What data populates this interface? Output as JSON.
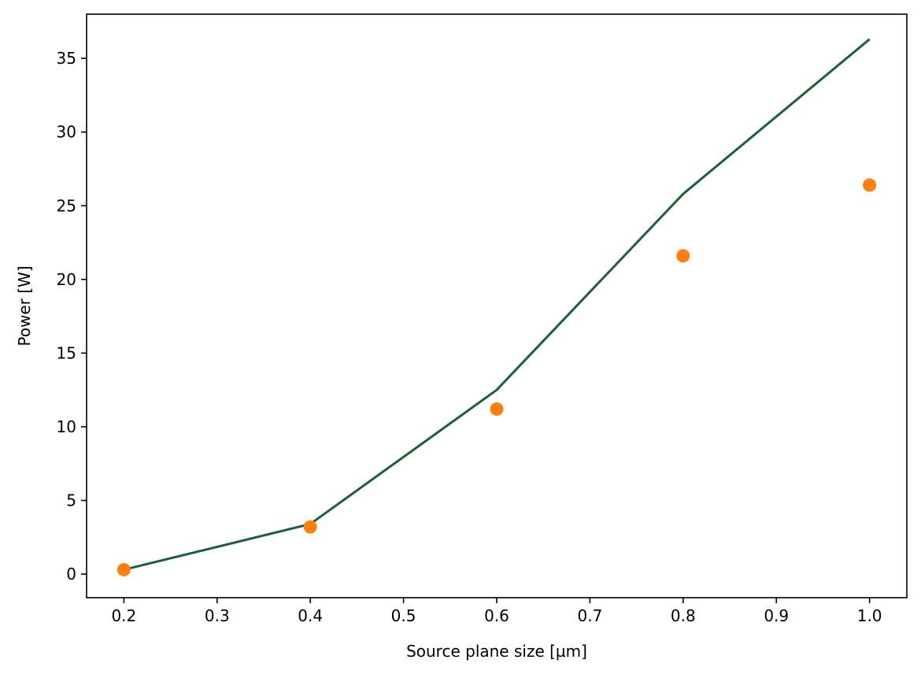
{
  "chart_data": {
    "type": "line",
    "title": "",
    "xlabel": "Source plane size [µm]",
    "ylabel": "Power [W]",
    "xlim": [
      0.16,
      1.04
    ],
    "ylim": [
      -1.6,
      38.0
    ],
    "xticks": [
      0.2,
      0.3,
      0.4,
      0.5,
      0.6,
      0.7,
      0.8,
      0.9,
      1.0
    ],
    "xtick_labels": [
      "0.2",
      "0.3",
      "0.4",
      "0.5",
      "0.6",
      "0.7",
      "0.8",
      "0.9",
      "1.0"
    ],
    "yticks": [
      0,
      5,
      10,
      15,
      20,
      25,
      30,
      35
    ],
    "ytick_labels": [
      "0",
      "5",
      "10",
      "15",
      "20",
      "25",
      "30",
      "35"
    ],
    "grid": false,
    "legend": false,
    "series": [
      {
        "type": "line",
        "color": "#1a6137",
        "x": [
          0.2,
          0.4,
          0.6,
          0.8,
          1.0
        ],
        "y": [
          0.3,
          3.4,
          12.5,
          25.8,
          36.3
        ]
      },
      {
        "type": "scatter",
        "color": "#ff7f0e",
        "x": [
          0.2,
          0.4,
          0.6,
          0.8,
          1.0
        ],
        "y": [
          0.3,
          3.2,
          11.2,
          21.6,
          26.4
        ]
      }
    ]
  }
}
